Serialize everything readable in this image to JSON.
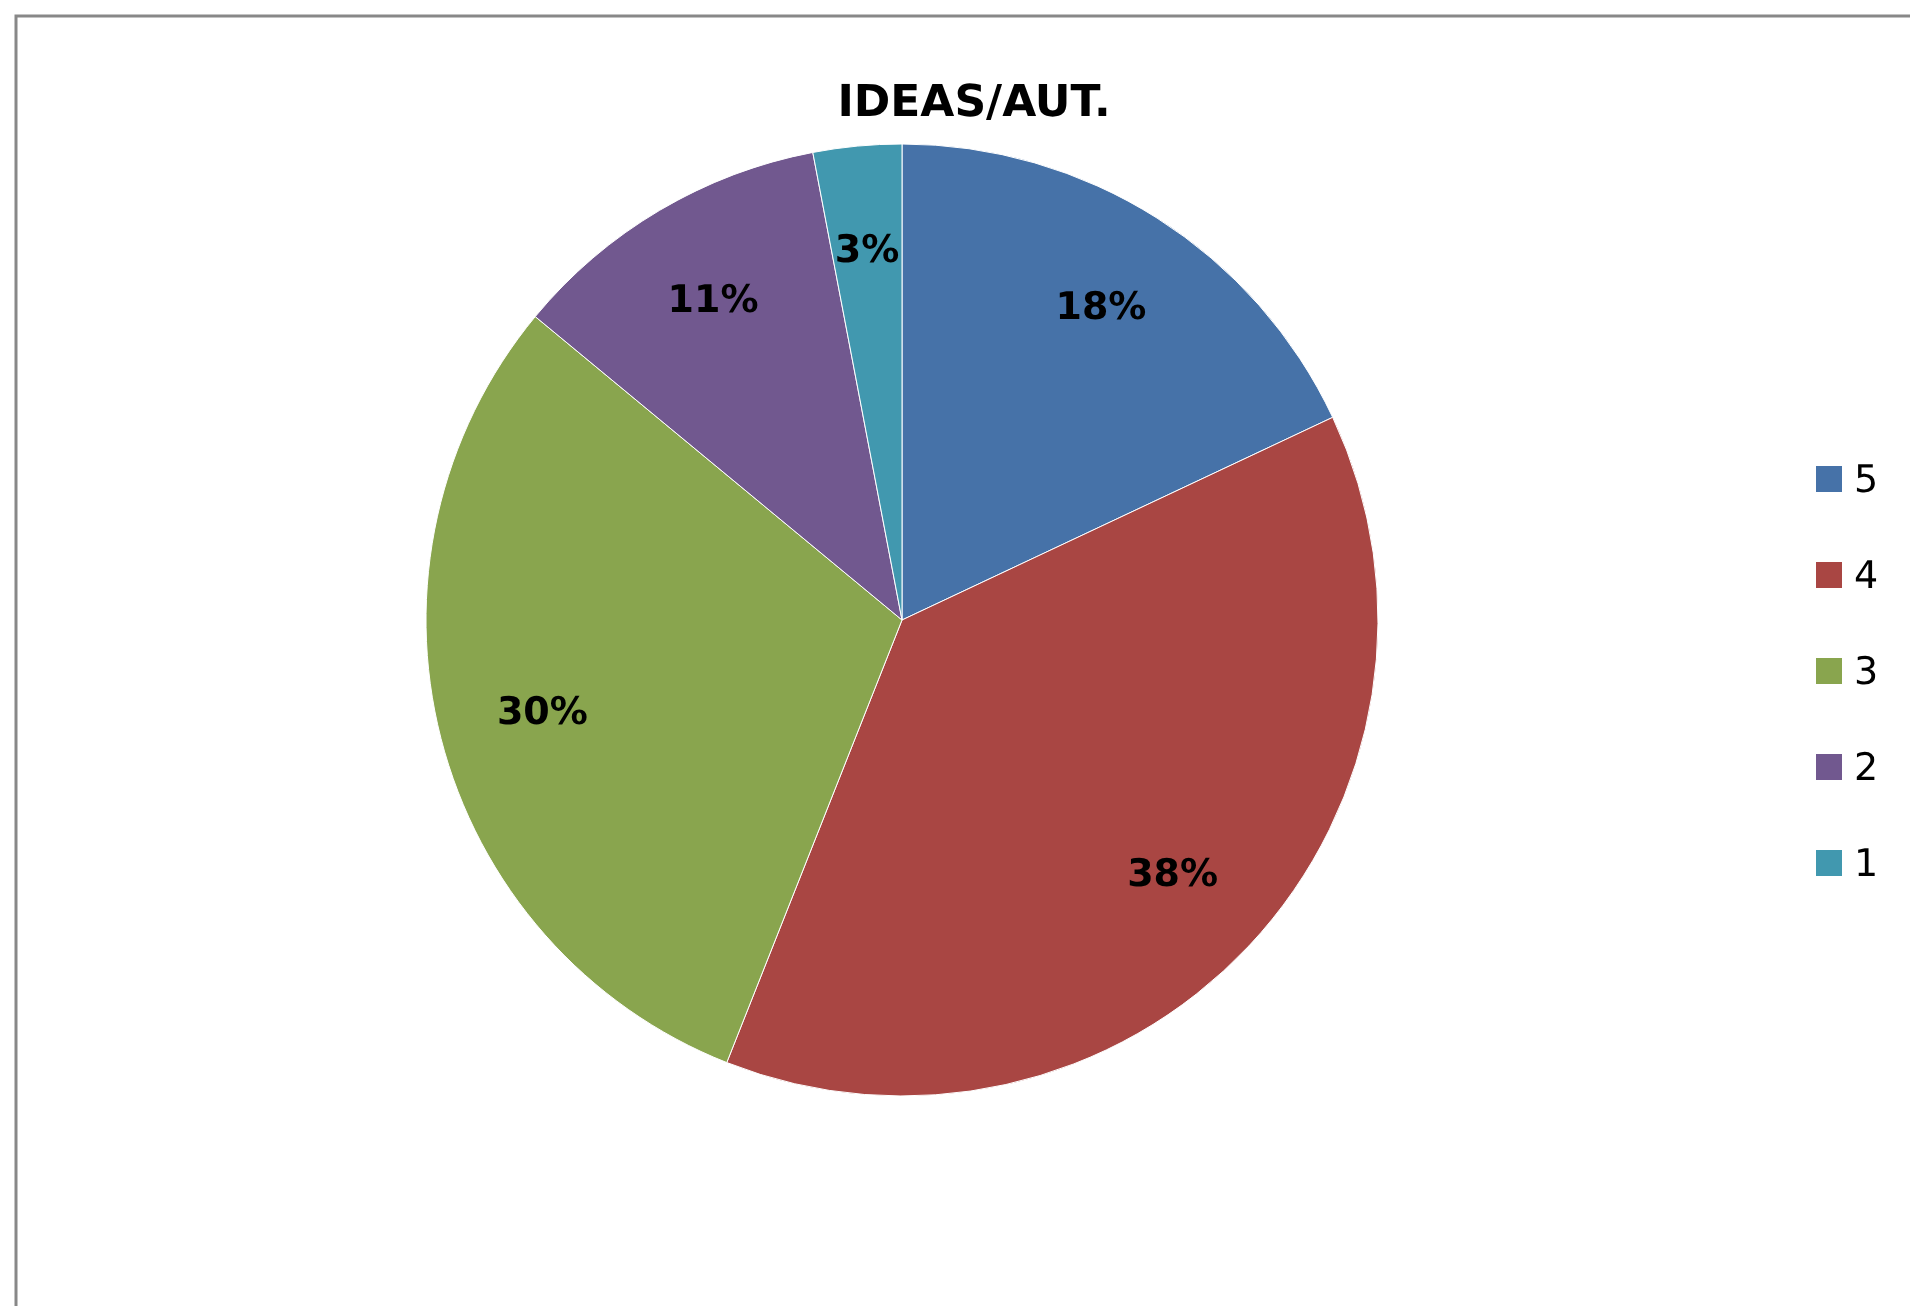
{
  "chart_data": {
    "type": "pie",
    "title": "IDEAS/AUT.",
    "categories": [
      "5",
      "4",
      "3",
      "2",
      "1"
    ],
    "values": [
      18,
      38,
      30,
      11,
      3
    ],
    "colors": [
      "#4672a8",
      "#a94643",
      "#89a54e",
      "#71588f",
      "#4198af"
    ],
    "value_labels": [
      "18%",
      "38%",
      "30%",
      "11%",
      "3%"
    ],
    "legend": "right"
  }
}
